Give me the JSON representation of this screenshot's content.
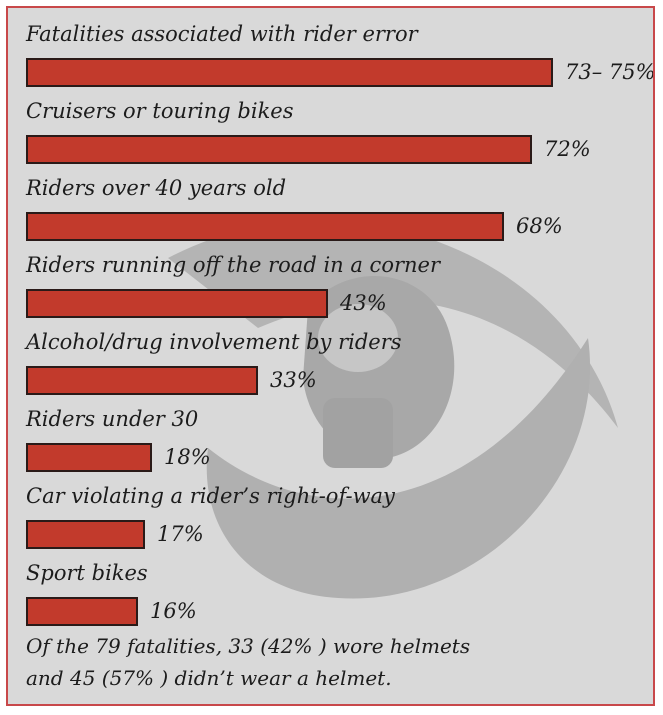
{
  "chart_data": {
    "type": "bar",
    "orientation": "horizontal",
    "categories": [
      "Fatalities associated with rider error",
      "Cruisers or touring bikes",
      "Riders over 40 years old",
      "Riders running off the road in a corner",
      "Alcohol/drug involvement by riders",
      "Riders under 30",
      "Car violating a rider’s right-of-way",
      "Sport bikes"
    ],
    "values": [
      75,
      72,
      68,
      43,
      33,
      18,
      17,
      16
    ],
    "value_labels": [
      "73– 75%",
      "72%",
      "68%",
      "43%",
      "33%",
      "18%",
      "17%",
      "16%"
    ],
    "bar_color": "#c23a2c",
    "grid": false,
    "legend": "none"
  },
  "footnote": {
    "line1": "Of the 79 fatalities, 33 (42% ) wore helmets",
    "line2": "and 45 (57% ) didn’t wear a helmet."
  },
  "colors": {
    "background": "#d9d9d9",
    "border": "#c8484a",
    "watermark": "#b2b2b2"
  },
  "watermark_icon": "grim-reaper-scythe-icon"
}
